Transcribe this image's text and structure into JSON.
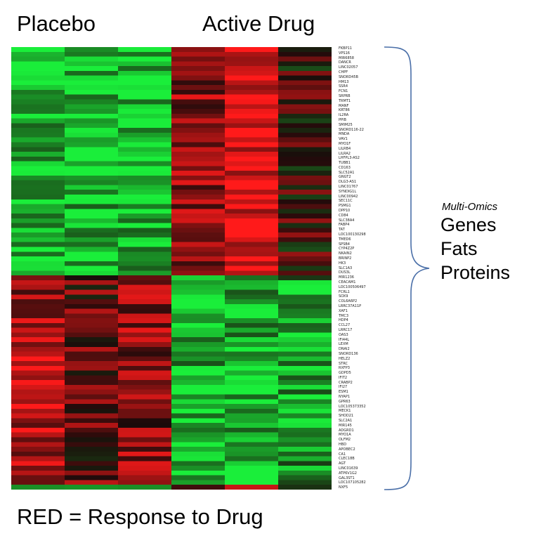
{
  "groups": {
    "placebo": "Placebo",
    "active": "Active Drug"
  },
  "annotation": {
    "title": "Multi-Omics",
    "items": [
      "Genes",
      "Fats",
      "Proteins"
    ]
  },
  "legend": "RED = Response to Drug",
  "colors": {
    "high": "#ff1a1a",
    "mid": "#1a0a0a",
    "low": "#1aee3a"
  },
  "chart_data": {
    "type": "heatmap",
    "title": "",
    "columns": [
      "",
      "",
      "",
      "",
      "",
      ""
    ],
    "column_groups": [
      {
        "name": "Placebo",
        "columns": [
          0,
          1,
          2
        ]
      },
      {
        "name": "Active Drug",
        "columns": [
          3,
          4,
          5
        ]
      }
    ],
    "colorscale": "green-black-red",
    "row_labels": [
      "FKBP11",
      "VPS16",
      "MIR6858",
      "DANCR",
      "LINC02057",
      "CHPF",
      "SNORD45B",
      "HM13",
      "SSR4",
      "FCN1",
      "SRPRB",
      "TRMT1",
      "MANF",
      "KRT86",
      "IL2RA",
      "PPIB",
      "SMIM25",
      "SNORD116-22",
      "MNDA",
      "VAV1",
      "MYO1F",
      "LILRB4",
      "LILRA2",
      "LHFPL3-AS2",
      "TUBB1",
      "CD163",
      "SLC52A1",
      "GNGT2",
      "DLG3-AS1",
      "LINC01767",
      "SYNDIG1L",
      "LINC00942",
      "SEC11C",
      "PSMG1",
      "DPP10",
      "CD84",
      "SLC38A4",
      "FABP4",
      "TAT",
      "LOC100130298",
      "TMED6",
      "SPSB4",
      "CYP4Z2P",
      "NKAIN2",
      "BRINP2",
      "HK3",
      "SLC1A3",
      "DUS3L",
      "MIR1236",
      "CEACAM1",
      "LOC100506497",
      "FCRL1",
      "SOX9",
      "COL6A6P2",
      "LRRC37A11P",
      "XAF1",
      "TMC3",
      "HDP4",
      "CCL27",
      "LRRC17",
      "OAS3",
      "IFI44L",
      "LEXM",
      "DNAI2",
      "SNORD136",
      "HELZ2",
      "STRC",
      "RXFP3",
      "GDPD5",
      "IFIT2",
      "CRABP2",
      "IFI27",
      "ESM1",
      "NYAP1",
      "GPR63",
      "LOC105373352",
      "MECK1",
      "SHOD21",
      "SLC2A1",
      "MIR145",
      "ADGRD1",
      "MYO1A",
      "OLFM2",
      "HBD",
      "APOBEC2",
      "CA1",
      "CLEC18B",
      "AGT",
      "LINC01639",
      "ATP6V1G2",
      "GAL3ST1",
      "LOC107105282",
      "NXF5"
    ],
    "blocks": [
      {
        "rows": [
          0,
          48
        ],
        "values": [
          -0.8,
          -0.8,
          -0.8,
          0.5,
          0.9,
          0.15
        ]
      },
      {
        "rows": [
          48,
          92
        ],
        "values": [
          0.6,
          0.3,
          0.45,
          -0.7,
          -0.75,
          -0.6
        ]
      }
    ]
  }
}
